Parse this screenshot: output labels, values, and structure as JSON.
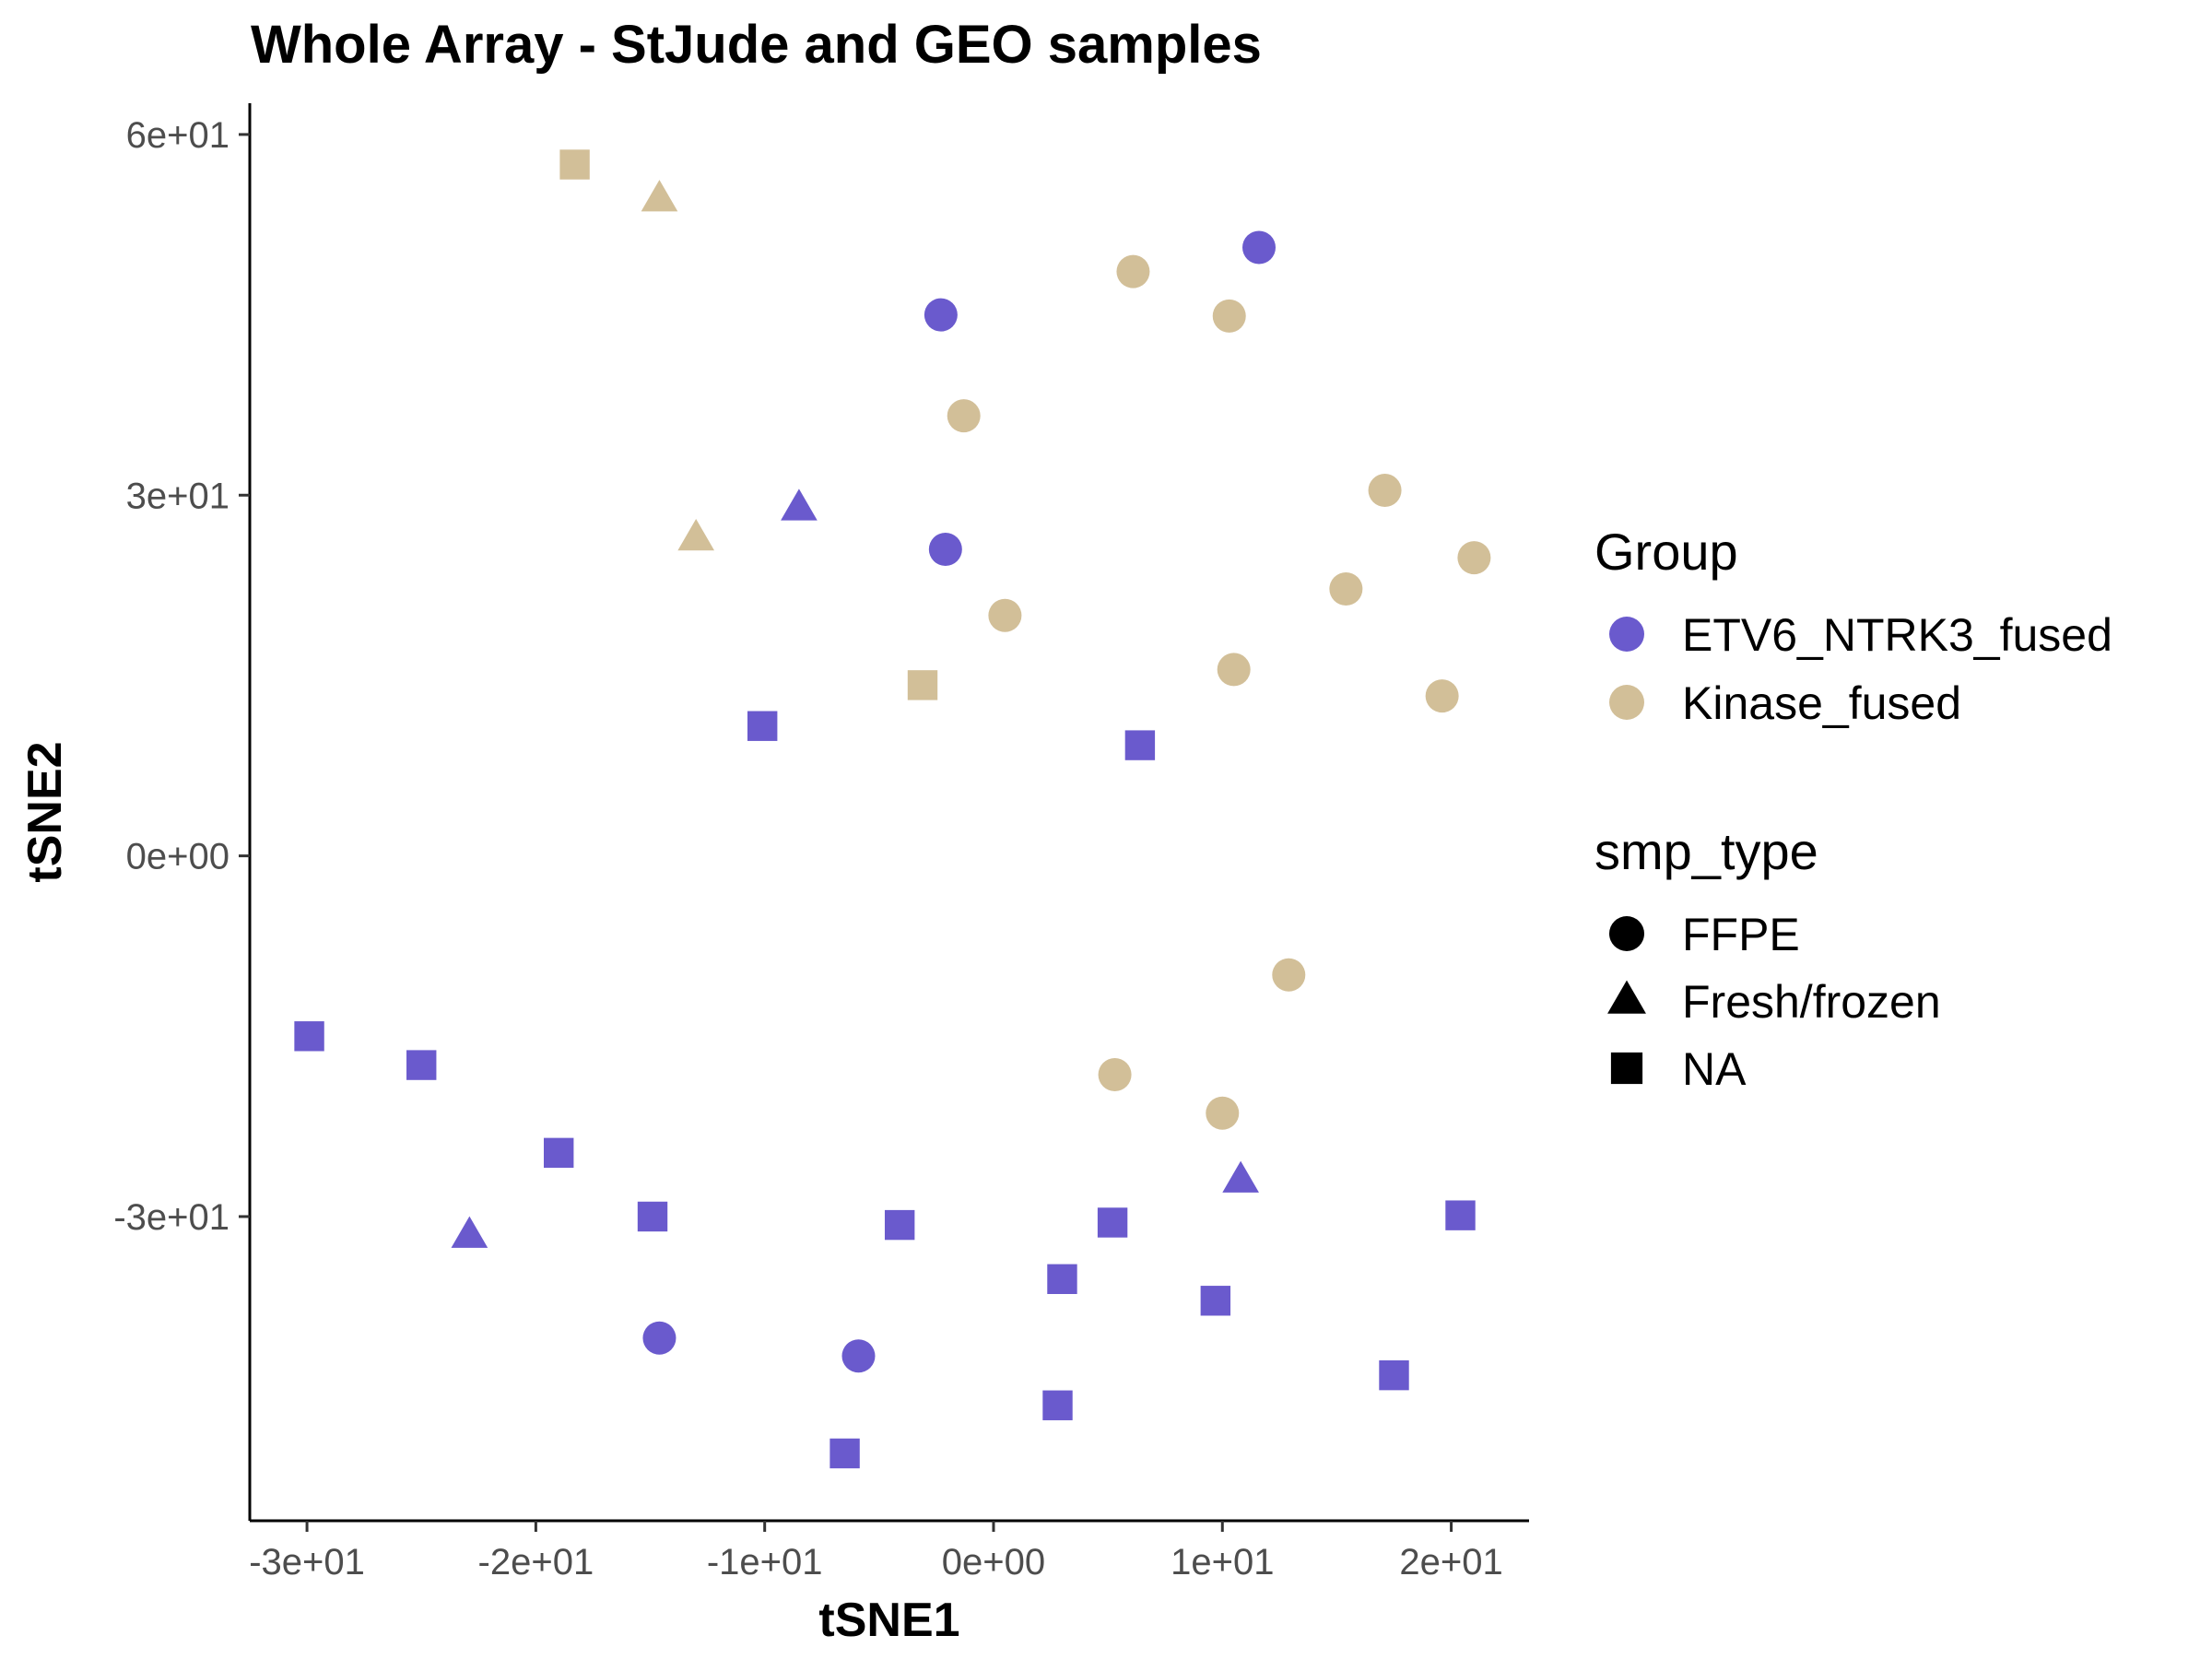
{
  "chart_data": {
    "type": "scatter",
    "title": "Whole Array - StJude and GEO samples",
    "xlabel": "tSNE1",
    "ylabel": "tSNE2",
    "xlim": [
      -32.5,
      23.4
    ],
    "ylim": [
      -55.3,
      62.6
    ],
    "x_ticks": [
      {
        "value": -30,
        "label": "-3e+01"
      },
      {
        "value": -20,
        "label": "-2e+01"
      },
      {
        "value": -10,
        "label": "-1e+01"
      },
      {
        "value": 0,
        "label": "0e+00"
      },
      {
        "value": 10,
        "label": "1e+01"
      },
      {
        "value": 20,
        "label": "2e+01"
      }
    ],
    "y_ticks": [
      {
        "value": 60,
        "label": "6e+01"
      },
      {
        "value": 30,
        "label": "3e+01"
      },
      {
        "value": 0,
        "label": "0e+00"
      },
      {
        "value": -30,
        "label": "-3e+01"
      }
    ],
    "grid": false,
    "legend_placement": "right",
    "color_legend": {
      "title": "Group",
      "entries": [
        {
          "label": "ETV6_NTRK3_fused",
          "color": "#6a5acd"
        },
        {
          "label": "Kinase_fused",
          "color": "#d2bf98"
        }
      ]
    },
    "shape_legend": {
      "title": "smp_type",
      "entries": [
        {
          "label": "FFPE",
          "shape": "circle"
        },
        {
          "label": "Fresh/frozen",
          "shape": "triangle"
        },
        {
          "label": "NA",
          "shape": "square"
        }
      ]
    },
    "series": [
      {
        "name": "ETV6_NTRK3_fused",
        "color": "#6a5acd",
        "points": [
          {
            "x": 11.6,
            "y": 50.6,
            "shape": "circle"
          },
          {
            "x": -2.3,
            "y": 45.0,
            "shape": "circle"
          },
          {
            "x": -2.1,
            "y": 25.5,
            "shape": "circle"
          },
          {
            "x": -8.5,
            "y": 28.9,
            "shape": "triangle"
          },
          {
            "x": -10.1,
            "y": 10.8,
            "shape": "square"
          },
          {
            "x": 6.4,
            "y": 9.2,
            "shape": "square"
          },
          {
            "x": -29.9,
            "y": -15.0,
            "shape": "square"
          },
          {
            "x": -25.0,
            "y": -17.4,
            "shape": "square"
          },
          {
            "x": -19.0,
            "y": -24.7,
            "shape": "square"
          },
          {
            "x": -14.9,
            "y": -30.0,
            "shape": "square"
          },
          {
            "x": -22.9,
            "y": -31.6,
            "shape": "triangle"
          },
          {
            "x": -4.1,
            "y": -30.7,
            "shape": "square"
          },
          {
            "x": 5.2,
            "y": -30.5,
            "shape": "square"
          },
          {
            "x": 10.8,
            "y": -27.0,
            "shape": "triangle"
          },
          {
            "x": 20.4,
            "y": -29.9,
            "shape": "square"
          },
          {
            "x": 3.0,
            "y": -35.2,
            "shape": "square"
          },
          {
            "x": 9.7,
            "y": -37.0,
            "shape": "square"
          },
          {
            "x": -14.6,
            "y": -40.1,
            "shape": "circle"
          },
          {
            "x": -5.9,
            "y": -41.6,
            "shape": "circle"
          },
          {
            "x": 17.5,
            "y": -43.2,
            "shape": "square"
          },
          {
            "x": 2.8,
            "y": -45.7,
            "shape": "square"
          },
          {
            "x": -6.5,
            "y": -49.7,
            "shape": "square"
          }
        ]
      },
      {
        "name": "Kinase_fused",
        "color": "#d2bf98",
        "points": [
          {
            "x": -18.3,
            "y": 57.5,
            "shape": "square"
          },
          {
            "x": -14.6,
            "y": 54.6,
            "shape": "triangle"
          },
          {
            "x": 6.1,
            "y": 48.6,
            "shape": "circle"
          },
          {
            "x": 10.3,
            "y": 44.9,
            "shape": "circle"
          },
          {
            "x": -1.3,
            "y": 36.6,
            "shape": "circle"
          },
          {
            "x": 17.1,
            "y": 30.4,
            "shape": "circle"
          },
          {
            "x": -13.0,
            "y": 26.4,
            "shape": "triangle"
          },
          {
            "x": 21.0,
            "y": 24.8,
            "shape": "circle"
          },
          {
            "x": 15.4,
            "y": 22.2,
            "shape": "circle"
          },
          {
            "x": 0.5,
            "y": 20.0,
            "shape": "circle"
          },
          {
            "x": 10.5,
            "y": 15.5,
            "shape": "circle"
          },
          {
            "x": -3.1,
            "y": 14.2,
            "shape": "square"
          },
          {
            "x": 19.6,
            "y": 13.3,
            "shape": "circle"
          },
          {
            "x": 12.9,
            "y": -9.9,
            "shape": "circle"
          },
          {
            "x": 5.3,
            "y": -18.2,
            "shape": "circle"
          },
          {
            "x": 10.0,
            "y": -21.4,
            "shape": "circle"
          }
        ]
      }
    ]
  }
}
